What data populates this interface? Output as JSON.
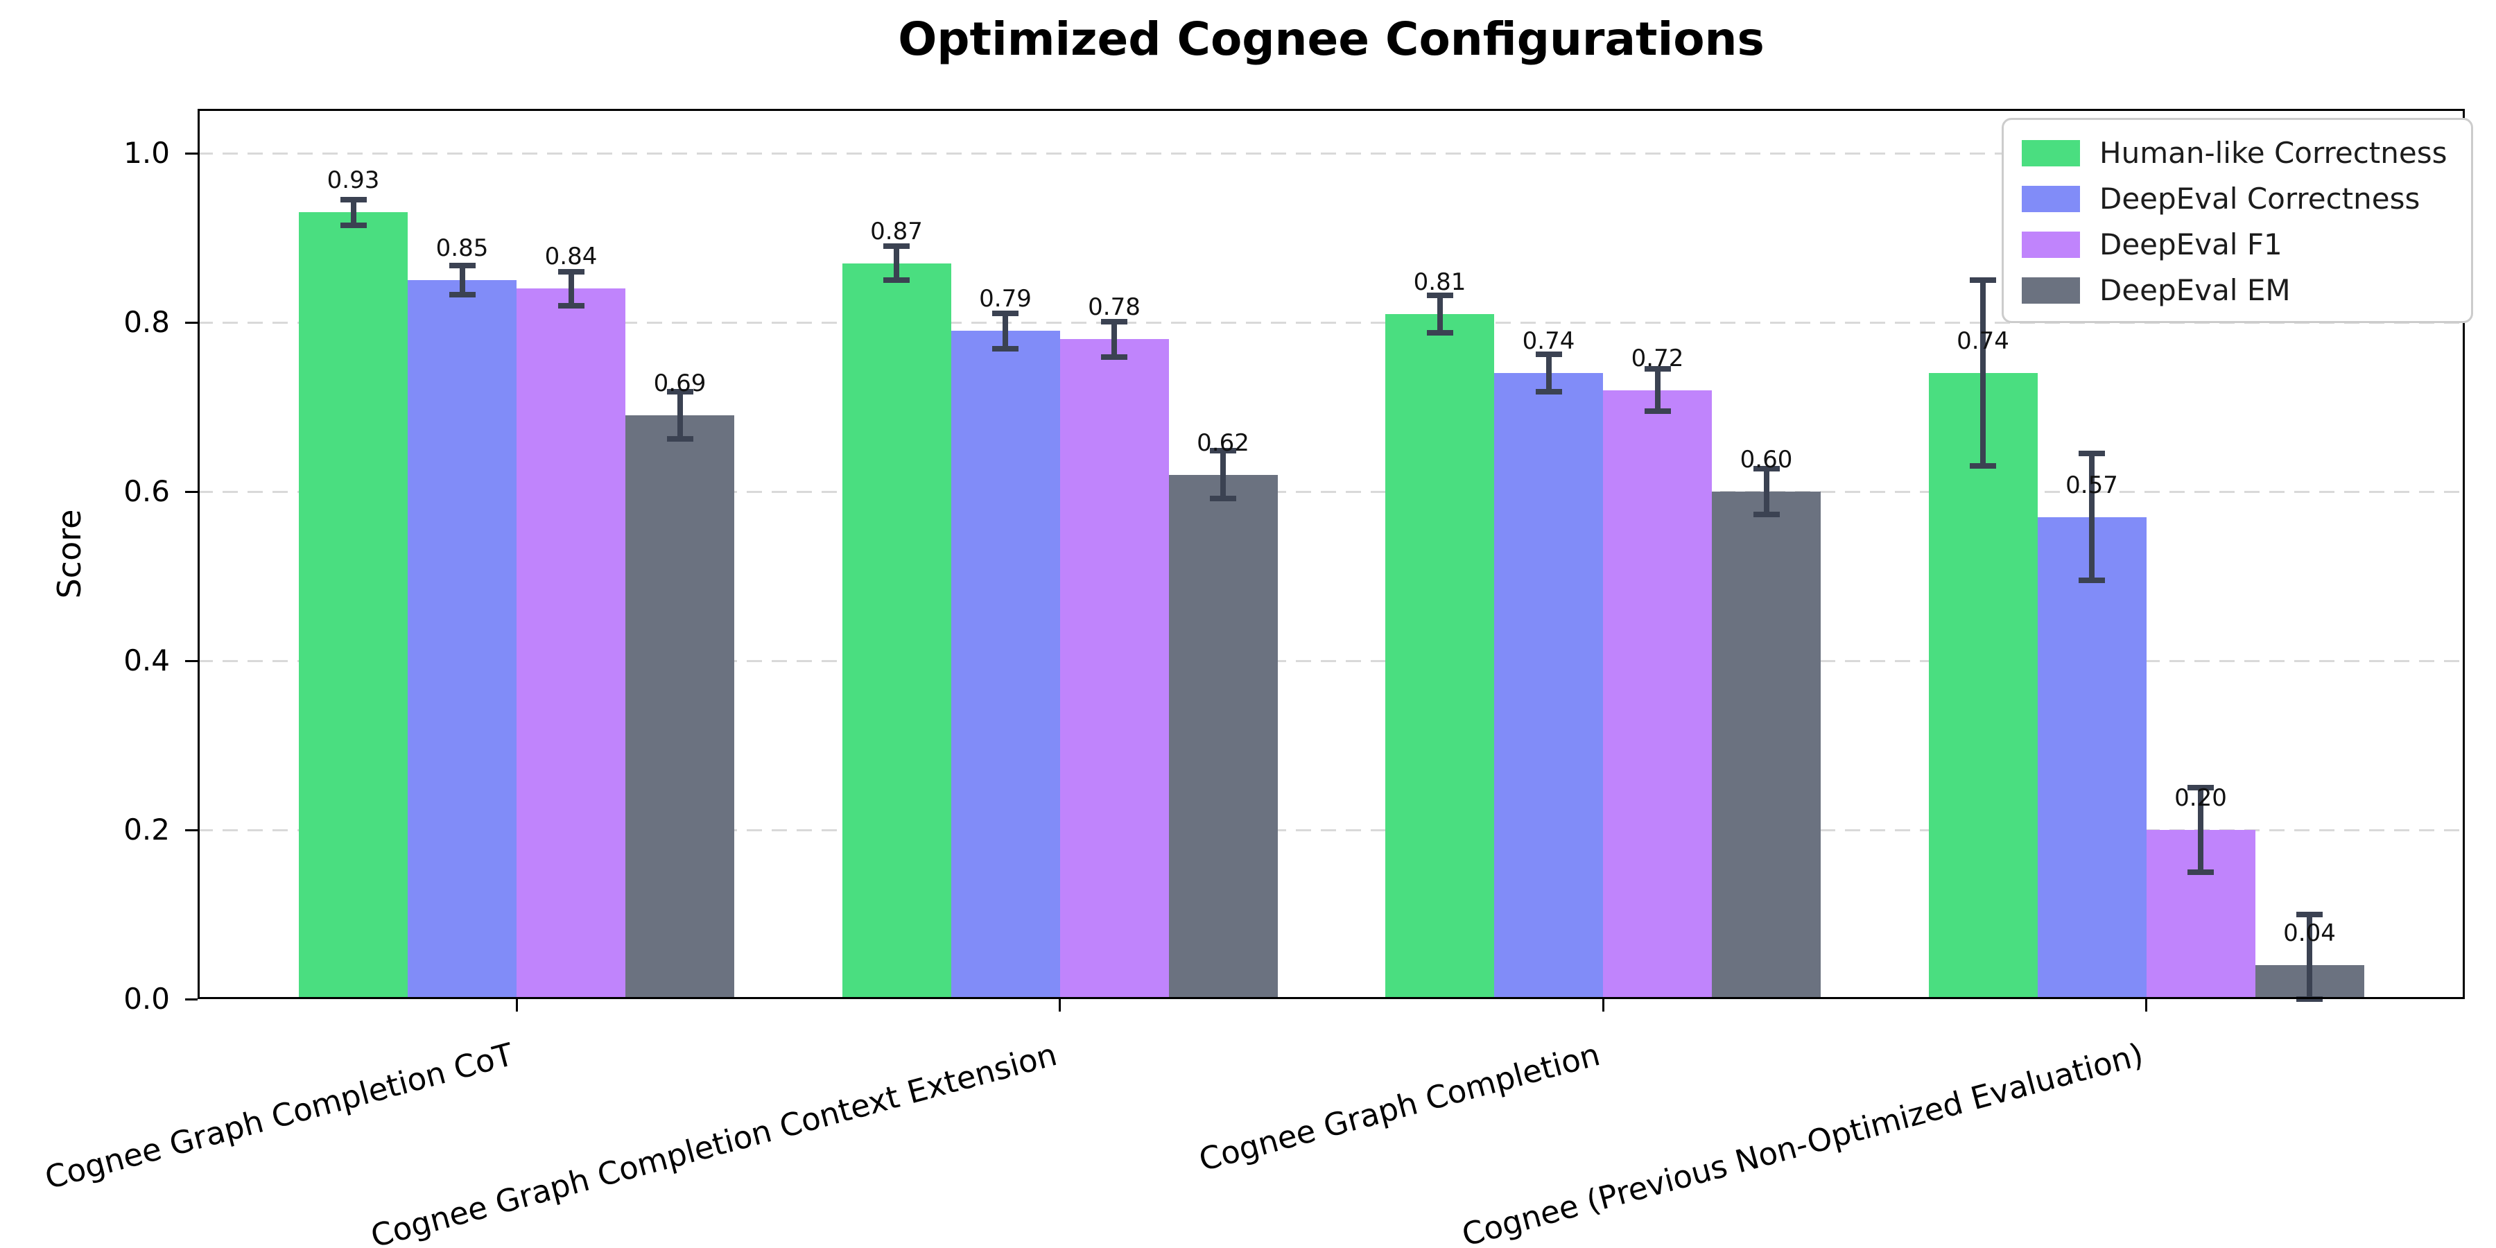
{
  "chart_data": {
    "type": "bar",
    "title": "Optimized Cognee Configurations",
    "ylabel": "Score",
    "categories": [
      "Cognee Graph Completion CoT",
      "Cognee Graph Completion Context Extension",
      "Cognee Graph Completion",
      "Cognee (Previous Non-Optimized Evaluation)"
    ],
    "series": [
      {
        "name": "Human-like Correctness",
        "color": "#4ade80",
        "values": [
          0.93,
          0.87,
          0.81,
          0.74
        ],
        "errors": [
          0.015,
          0.02,
          0.022,
          0.11
        ],
        "value_labels": [
          "0.93",
          "0.87",
          "0.81",
          "0.74"
        ]
      },
      {
        "name": "DeepEval Correctness",
        "color": "#818cf8",
        "values": [
          0.85,
          0.79,
          0.74,
          0.57
        ],
        "errors": [
          0.017,
          0.021,
          0.022,
          0.075
        ],
        "value_labels": [
          "0.85",
          "0.79",
          "0.74",
          "0.57"
        ]
      },
      {
        "name": "DeepEval F1",
        "color": "#c084fc",
        "values": [
          0.84,
          0.78,
          0.72,
          0.2
        ],
        "errors": [
          0.02,
          0.021,
          0.025,
          0.05
        ],
        "value_labels": [
          "0.84",
          "0.78",
          "0.72",
          "0.20"
        ]
      },
      {
        "name": "DeepEval EM",
        "color": "#6b7280",
        "values": [
          0.69,
          0.62,
          0.6,
          0.04
        ],
        "errors": [
          0.028,
          0.028,
          0.027,
          0.06
        ],
        "value_labels": [
          "0.69",
          "0.62",
          "0.60",
          "0.04"
        ]
      }
    ],
    "y_ticks": [
      "0.0",
      "0.2",
      "0.4",
      "0.6",
      "0.8",
      "1.0"
    ],
    "ylim": [
      0,
      1.0525
    ],
    "grid": "horizontal-dashed",
    "grid_color": "#d9d9d9",
    "error_bar_color": "#3b4252",
    "legend_position": "upper-right"
  }
}
